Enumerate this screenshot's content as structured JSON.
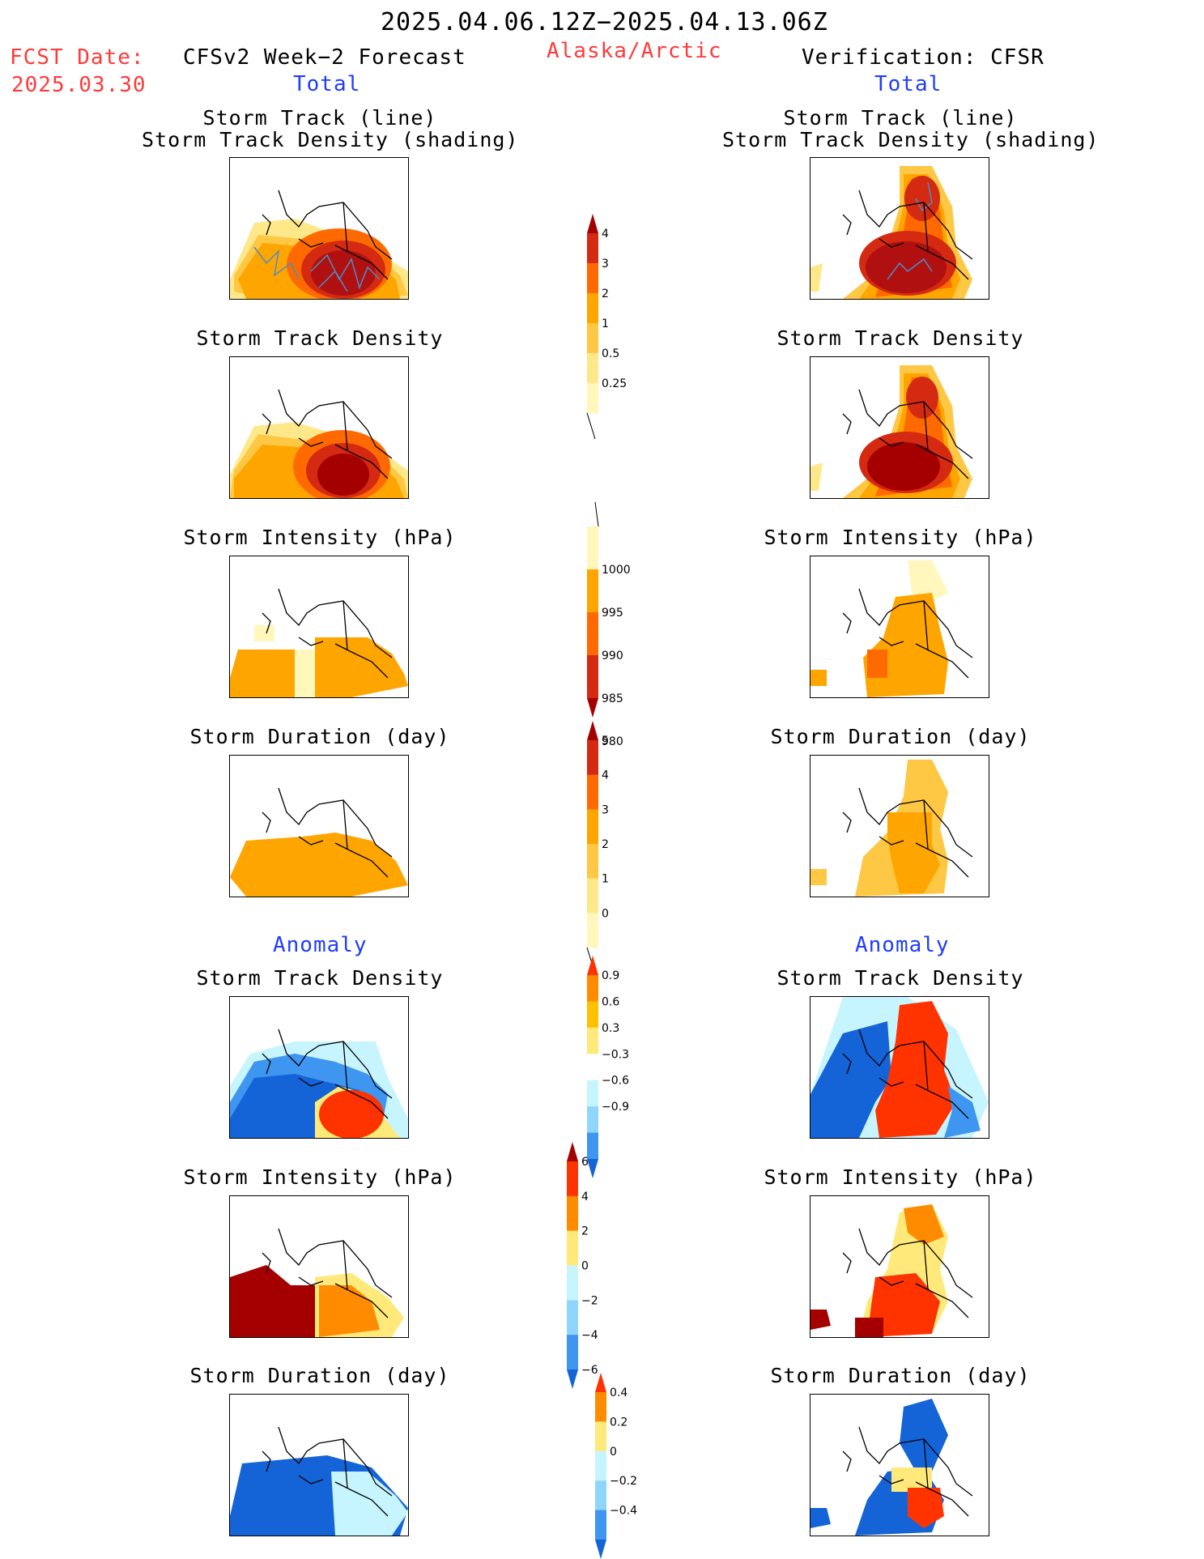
{
  "header": {
    "date_range": "2025.04.06.12Z−2025.04.13.06Z",
    "fcst_label": "FCST Date:",
    "fcst_date": "2025.03.30",
    "forecast_title": "CFSv2 Week−2 Forecast",
    "region": "Alaska/Arctic",
    "verification_title": "Verification: CFSR",
    "total_left": "Total",
    "total_right": "Total",
    "anomaly_left": "Anomaly",
    "anomaly_right": "Anomaly"
  },
  "panel_titles": {
    "track_line": "Storm Track (line)",
    "track_shading": "Storm Track Density (shading)",
    "density": "Storm Track Density",
    "intensity": "Storm Intensity (hPa)",
    "duration": "Storm Duration (day)"
  },
  "colorbars": {
    "total_density": {
      "labels": [
        "4",
        "3",
        "2",
        "1",
        "0.5",
        "0.25"
      ],
      "colors": [
        "#a50000",
        "#d42a12",
        "#ff6a00",
        "#ffa500",
        "#ffc844",
        "#ffe88a",
        "#fff7bc"
      ]
    },
    "total_intensity": {
      "labels": [
        "1000",
        "995",
        "990",
        "985",
        "980"
      ],
      "colors": [
        "#fff7bc",
        "#ffa500",
        "#ff6a00",
        "#d42a12",
        "#a50000"
      ]
    },
    "total_duration": {
      "labels": [
        "5",
        "4",
        "3",
        "2",
        "1",
        "0"
      ],
      "colors": [
        "#a50000",
        "#d42a12",
        "#ff6a00",
        "#ffa500",
        "#ffc844",
        "#ffe88a",
        "#fff7bc"
      ]
    },
    "anom_density": {
      "labels": [
        "0.9",
        "0.6",
        "0.3",
        "−0.3",
        "−0.6",
        "−0.9"
      ],
      "colors": [
        "#ff3300",
        "#ff8c00",
        "#ffc000",
        "#ffe97a",
        "#ffffff",
        "#c7f5ff",
        "#8fd6ff",
        "#3f96f0",
        "#1464d8"
      ]
    },
    "anom_intensity": {
      "labels": [
        "6",
        "4",
        "2",
        "0",
        "−2",
        "−4",
        "−6"
      ],
      "colors": [
        "#a50000",
        "#ff3300",
        "#ff8c00",
        "#ffe97a",
        "#c7f5ff",
        "#8fd6ff",
        "#3f96f0",
        "#1464d8"
      ]
    },
    "anom_duration": {
      "labels": [
        "0.4",
        "0.2",
        "0",
        "−0.2",
        "−0.4"
      ],
      "colors": [
        "#ff3300",
        "#ff8c00",
        "#ffe97a",
        "#c7f5ff",
        "#8fd6ff",
        "#3f96f0",
        "#1464d8"
      ]
    }
  }
}
